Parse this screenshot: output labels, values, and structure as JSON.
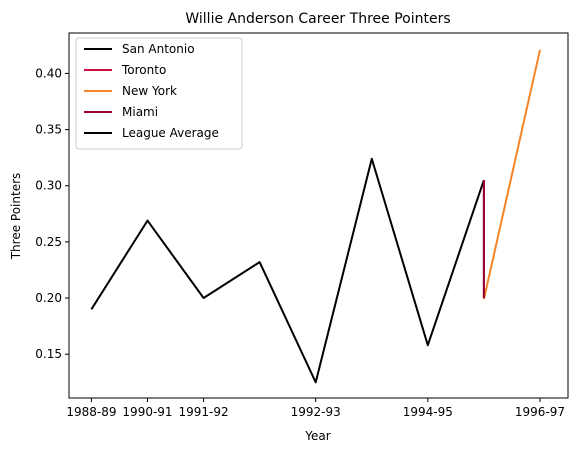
{
  "chart_data": {
    "type": "line",
    "title": "Willie Anderson  Career Three Pointers",
    "xlabel": "Year",
    "ylabel": "Three Pointers",
    "x_tick_labels": [
      "1988-89",
      "1990-91",
      "1991-92",
      "1992-93",
      "1994-95",
      "1996-97"
    ],
    "y_ticks": [
      0.15,
      0.2,
      0.25,
      0.3,
      0.35,
      0.4
    ],
    "y_tick_labels": [
      "0.15",
      "0.20",
      "0.25",
      "0.30",
      "0.35",
      "0.40"
    ],
    "xlim": [
      1988.6,
      1997.5
    ],
    "ylim": [
      0.111,
      0.436
    ],
    "grid": false,
    "legend_position": "upper-left",
    "series": [
      {
        "name": "San Antonio",
        "color": "#000000",
        "x": [
          1989,
          1990,
          1991,
          1992,
          1993,
          1994,
          1995,
          1996
        ],
        "y": [
          0.19,
          0.269,
          0.2,
          0.232,
          0.125,
          0.324,
          0.158,
          0.305
        ]
      },
      {
        "name": "Toronto",
        "color": "#ce1141",
        "x": [
          1996,
          1996
        ],
        "y": [
          0.305,
          0.2
        ]
      },
      {
        "name": "New York",
        "color": "#f58426",
        "x": [
          1996,
          1997
        ],
        "y": [
          0.199,
          0.421
        ]
      },
      {
        "name": "Miami",
        "color": "#98002e",
        "x": [
          1996,
          1996
        ],
        "y": [
          0.305,
          0.2
        ]
      },
      {
        "name": "League Average",
        "color": "#000000",
        "x": [],
        "y": []
      }
    ]
  }
}
